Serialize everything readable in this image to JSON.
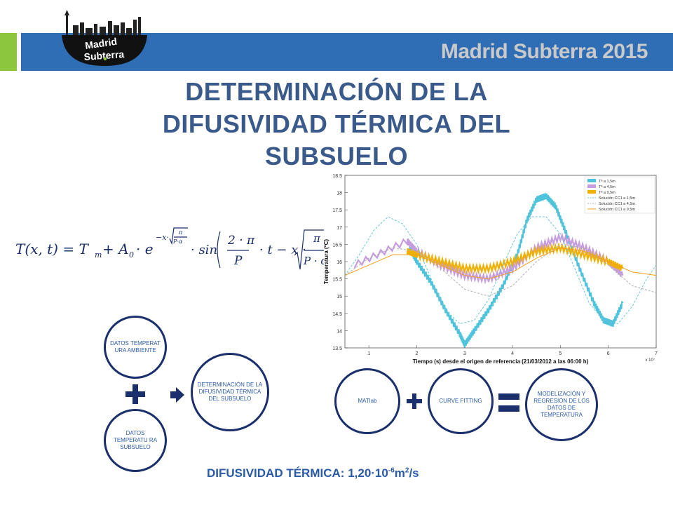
{
  "header": {
    "brand": "Madrid Subterra 2015",
    "logo_line1": "Madrid",
    "logo_line2": "Subterra"
  },
  "title": {
    "line1": "DETERMINACIÓN DE LA",
    "line2": "DIFUSIVIDAD TÉRMICA DEL",
    "line3": "SUBSUELO"
  },
  "formula": {
    "lhs": "T(x, t) = T",
    "tm_sub": "m",
    "plus": "+ A",
    "a_sub": "0",
    "dot_e": "· e",
    "exp_prefix": "−x·",
    "exp_num": "π",
    "exp_den": "P·α",
    "sin": "· sin",
    "frac_num": "2 · π",
    "frac_den": "P",
    "after_frac": "· t − x ·",
    "sqrt_num": "π",
    "sqrt_den": "P · α"
  },
  "flow_left": {
    "circle1": "DATOS TEMPERAT URA AMBIENTE",
    "circle2": "DATOS TEMPERATU RA SUBSUELO",
    "circle3": "DETERMINACIÓN DE LA DIFUSIVIDAD TÉRMICA DEL SUBSUELO"
  },
  "flow_right": {
    "circle1": "MATlab",
    "circle2": "CURVE FITTING",
    "circle3": "MODELIZACIÓN Y REGRESIÓN DE LOS DATOS DE TEMPERATURA"
  },
  "result": {
    "label": "DIFUSIVIDAD TÉRMICA:",
    "value": "1,20·10",
    "exp": "-6",
    "unit": "m",
    "unit_exp": "2",
    "unit_tail": "/s"
  },
  "chart_data": {
    "type": "line",
    "xlabel": "Tiempo (s) desde el origen de referencia (21/03/2012 a las 06:00 h)",
    "ylabel": "Temperatura (ºC)",
    "x_multiplier": "x 10⁷",
    "xlim": [
      0.5,
      7
    ],
    "ylim": [
      13.5,
      18.5
    ],
    "xticks": [
      "1",
      "2",
      "3",
      "4",
      "5",
      "6",
      "7"
    ],
    "yticks": [
      "13.5",
      "14",
      "14.5",
      "15",
      "15.5",
      "16",
      "16.5",
      "17",
      "17.5",
      "18",
      "18.5"
    ],
    "legend_position": "top-right",
    "series": [
      {
        "name": "Tª a 1,5m",
        "style": "measured",
        "color": "#4fc3dc",
        "x": [
          1.85,
          2.0,
          2.3,
          2.6,
          2.9,
          3.0,
          3.2,
          3.5,
          3.8,
          4.1,
          4.3,
          4.5,
          4.7,
          4.9,
          5.1,
          5.4,
          5.7,
          5.9,
          6.1,
          6.3
        ],
        "y": [
          16.4,
          16.0,
          15.4,
          14.6,
          13.9,
          13.6,
          14.0,
          14.6,
          15.3,
          16.2,
          17.2,
          17.8,
          17.9,
          17.6,
          16.9,
          15.8,
          14.8,
          14.3,
          14.2,
          14.8
        ]
      },
      {
        "name": "Tª a 4,5m",
        "style": "measured",
        "color": "#c79be0",
        "x": [
          0.7,
          1.8,
          2.0,
          2.5,
          3.0,
          3.5,
          4.0,
          4.5,
          5.0,
          5.5,
          6.0,
          6.3
        ],
        "y": [
          15.9,
          16.6,
          16.3,
          15.9,
          15.6,
          15.5,
          15.8,
          16.4,
          16.7,
          16.4,
          16.0,
          15.6
        ]
      },
      {
        "name": "Tª a 9,5m",
        "style": "measured",
        "color": "#f0b000",
        "x": [
          1.8,
          2.0,
          2.5,
          3.0,
          3.5,
          4.0,
          4.5,
          5.0,
          5.5,
          6.0,
          6.3
        ],
        "y": [
          16.3,
          16.2,
          16.0,
          15.8,
          15.8,
          16.0,
          16.3,
          16.4,
          16.2,
          16.0,
          15.8
        ]
      },
      {
        "name": "Solución CC1 a 1,5m",
        "style": "dashed",
        "color": "#6ac6d6",
        "x": [
          0.5,
          0.8,
          1.1,
          1.4,
          1.7,
          2.0,
          2.3,
          2.6,
          2.9,
          3.2,
          3.5,
          3.8,
          4.1,
          4.4,
          4.7,
          5.0,
          5.3,
          5.6,
          5.9,
          6.2,
          6.5,
          6.8,
          7.0
        ],
        "y": [
          15.6,
          16.2,
          16.9,
          17.3,
          17.1,
          16.5,
          15.5,
          14.6,
          14.2,
          14.3,
          14.9,
          15.9,
          16.8,
          17.3,
          17.3,
          16.8,
          15.8,
          14.8,
          14.3,
          14.2,
          14.7,
          15.5,
          15.9
        ]
      },
      {
        "name": "Solución CC1 a 4,5m",
        "style": "dashed",
        "color": "#b0b0b0",
        "x": [
          0.5,
          1.0,
          1.5,
          2.0,
          2.5,
          3.0,
          3.5,
          4.0,
          4.5,
          5.0,
          5.5,
          6.0,
          6.5,
          7.0
        ],
        "y": [
          15.6,
          16.1,
          16.4,
          16.3,
          15.8,
          15.2,
          15.0,
          15.3,
          16.0,
          16.5,
          16.4,
          15.9,
          15.3,
          15.1
        ]
      },
      {
        "name": "Solución CC1 a 9,5m",
        "style": "solid",
        "color": "#f0a020",
        "x": [
          0.5,
          1.0,
          1.5,
          2.0,
          2.5,
          3.0,
          3.5,
          4.0,
          4.5,
          5.0,
          5.5,
          6.0,
          6.5,
          7.0
        ],
        "y": [
          15.6,
          15.9,
          16.2,
          16.2,
          15.9,
          15.6,
          15.5,
          15.7,
          16.1,
          16.4,
          16.3,
          16.0,
          15.7,
          15.6
        ]
      }
    ]
  }
}
